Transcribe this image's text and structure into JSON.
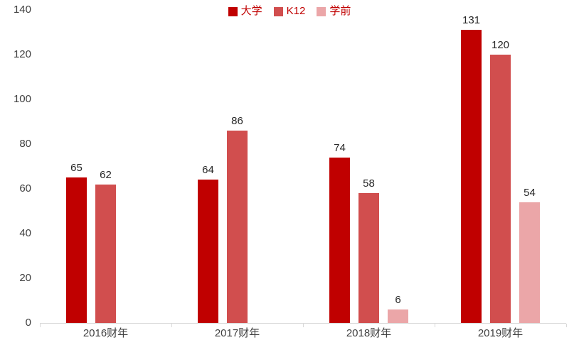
{
  "chart_data": {
    "type": "bar",
    "title": "",
    "xlabel": "",
    "ylabel": "",
    "categories": [
      "2016财年",
      "2017财年",
      "2018财年",
      "2019财年"
    ],
    "series": [
      {
        "name": "大学",
        "color": "#c00000",
        "values": [
          65,
          64,
          74,
          131
        ]
      },
      {
        "name": "K12",
        "color": "#d14e4e",
        "values": [
          62,
          86,
          58,
          120
        ]
      },
      {
        "name": "学前",
        "color": "#eba6a8",
        "values": [
          null,
          null,
          6,
          54
        ]
      }
    ],
    "ylim": [
      0,
      140
    ],
    "yticks": [
      0,
      20,
      40,
      60,
      80,
      100,
      120,
      140
    ],
    "grid": false,
    "legend_position": "top-center"
  },
  "colors": {
    "background": "#ffffff",
    "axis_line": "#d9d9d9",
    "tick_label": "#404040",
    "data_label": "#262626",
    "legend_text": "#c00000"
  }
}
